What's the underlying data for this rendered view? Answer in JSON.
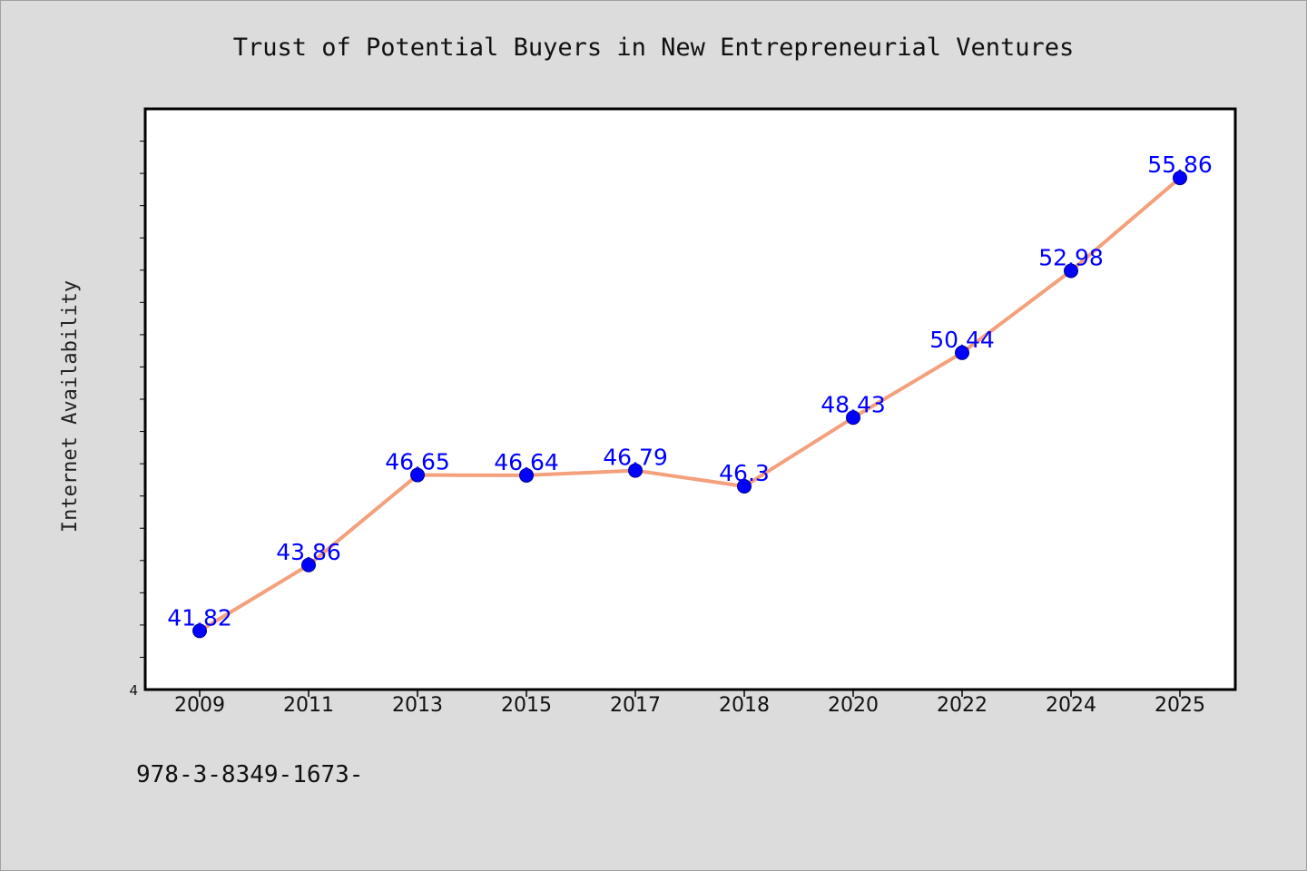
{
  "chart_data": {
    "type": "line",
    "title": "Trust of Potential Buyers in New Entrepreneurial Ventures",
    "xlabel": "",
    "ylabel": "Internet Availability",
    "categories": [
      "2009",
      "2011",
      "2013",
      "2015",
      "2017",
      "2018",
      "2020",
      "2022",
      "2024",
      "2025"
    ],
    "series": [
      {
        "values": [
          41.82,
          43.86,
          46.65,
          46.64,
          46.79,
          46.3,
          48.43,
          50.44,
          52.98,
          55.86
        ],
        "labels": [
          "41.82",
          "43.86",
          "46.65",
          "46.64",
          "46.79",
          "46.3",
          "48.43",
          "50.44",
          "52.98",
          "55.86"
        ]
      }
    ],
    "ylim": [
      40,
      58
    ],
    "y_min_tick_label": "4",
    "grid": false,
    "legend": "none",
    "colors": {
      "line": "#f4a07c",
      "marker": "#0000ff",
      "label": "#0000ff",
      "plot_bg": "#ffffff",
      "page_bg": "#dcdcdc"
    }
  },
  "footer": "978-3-8349-1673-"
}
